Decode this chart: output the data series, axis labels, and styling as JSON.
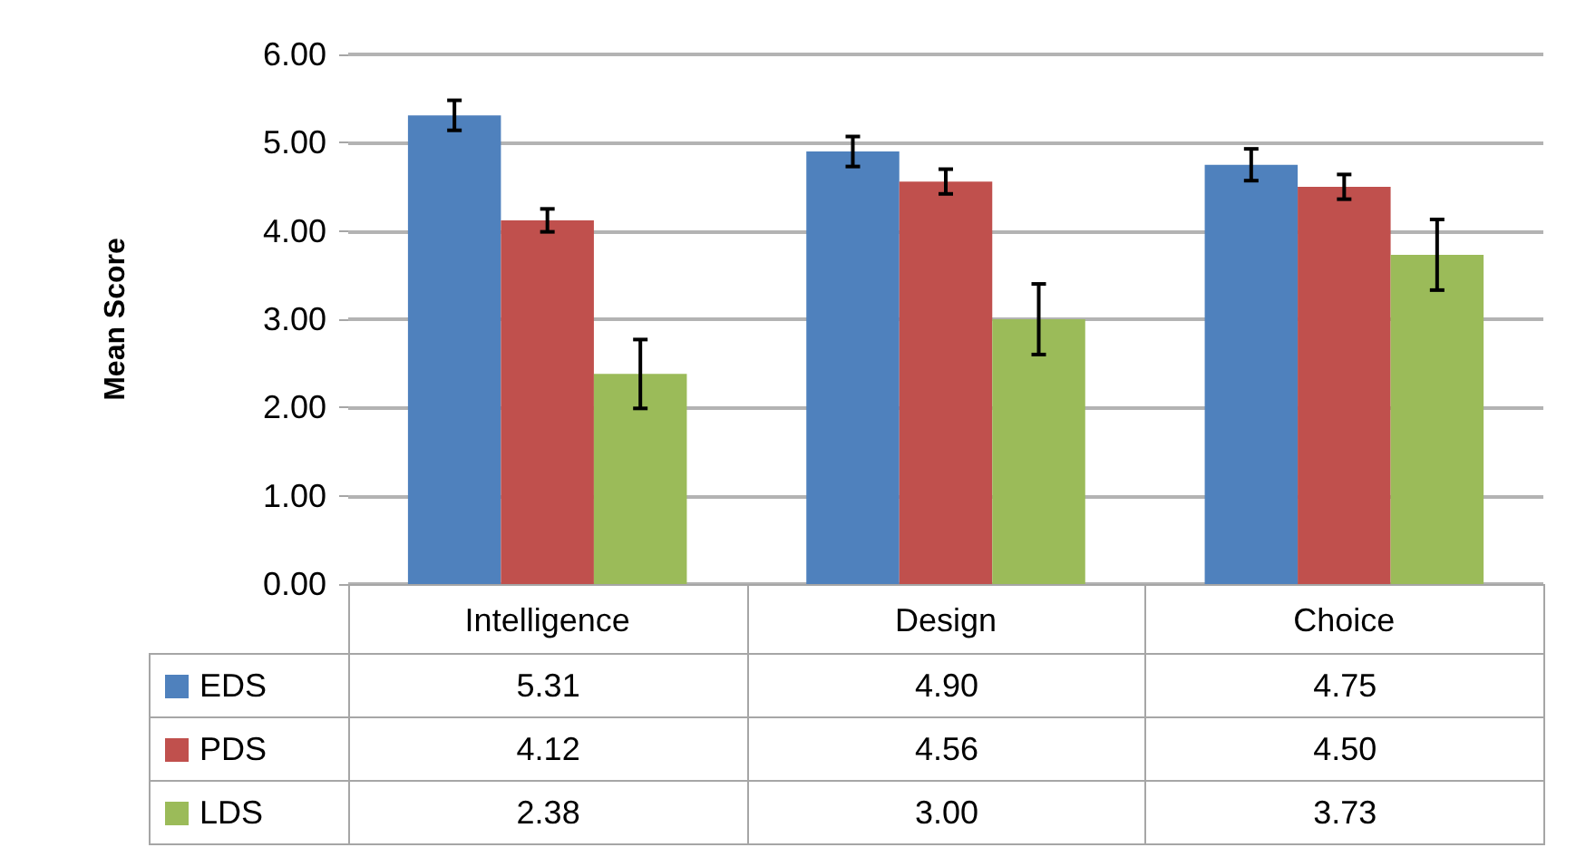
{
  "chart_data": {
    "type": "bar",
    "ylabel": "Mean Score",
    "categories": [
      "Intelligence",
      "Design",
      "Choice"
    ],
    "series": [
      {
        "name": "EDS",
        "color": "#4f81bd",
        "values": [
          5.31,
          4.9,
          4.75
        ],
        "errors": [
          0.17,
          0.17,
          0.18
        ],
        "value_labels": [
          "5.31",
          "4.90",
          "4.75"
        ]
      },
      {
        "name": "PDS",
        "color": "#c0504d",
        "values": [
          4.12,
          4.56,
          4.5
        ],
        "errors": [
          0.13,
          0.14,
          0.14
        ],
        "value_labels": [
          "4.12",
          "4.56",
          "4.50"
        ]
      },
      {
        "name": "LDS",
        "color": "#9bbb59",
        "values": [
          2.38,
          3.0,
          3.73
        ],
        "errors": [
          0.39,
          0.4,
          0.4
        ],
        "value_labels": [
          "2.38",
          "3.00",
          "3.73"
        ]
      }
    ],
    "ylim": [
      0,
      6
    ],
    "yticks": [
      {
        "value": 0,
        "label": "0.00"
      },
      {
        "value": 1,
        "label": "1.00"
      },
      {
        "value": 2,
        "label": "2.00"
      },
      {
        "value": 3,
        "label": "3.00"
      },
      {
        "value": 4,
        "label": "4.00"
      },
      {
        "value": 5,
        "label": "5.00"
      },
      {
        "value": 6,
        "label": "6.00"
      }
    ],
    "grid": "y",
    "legend": "bottom left"
  }
}
